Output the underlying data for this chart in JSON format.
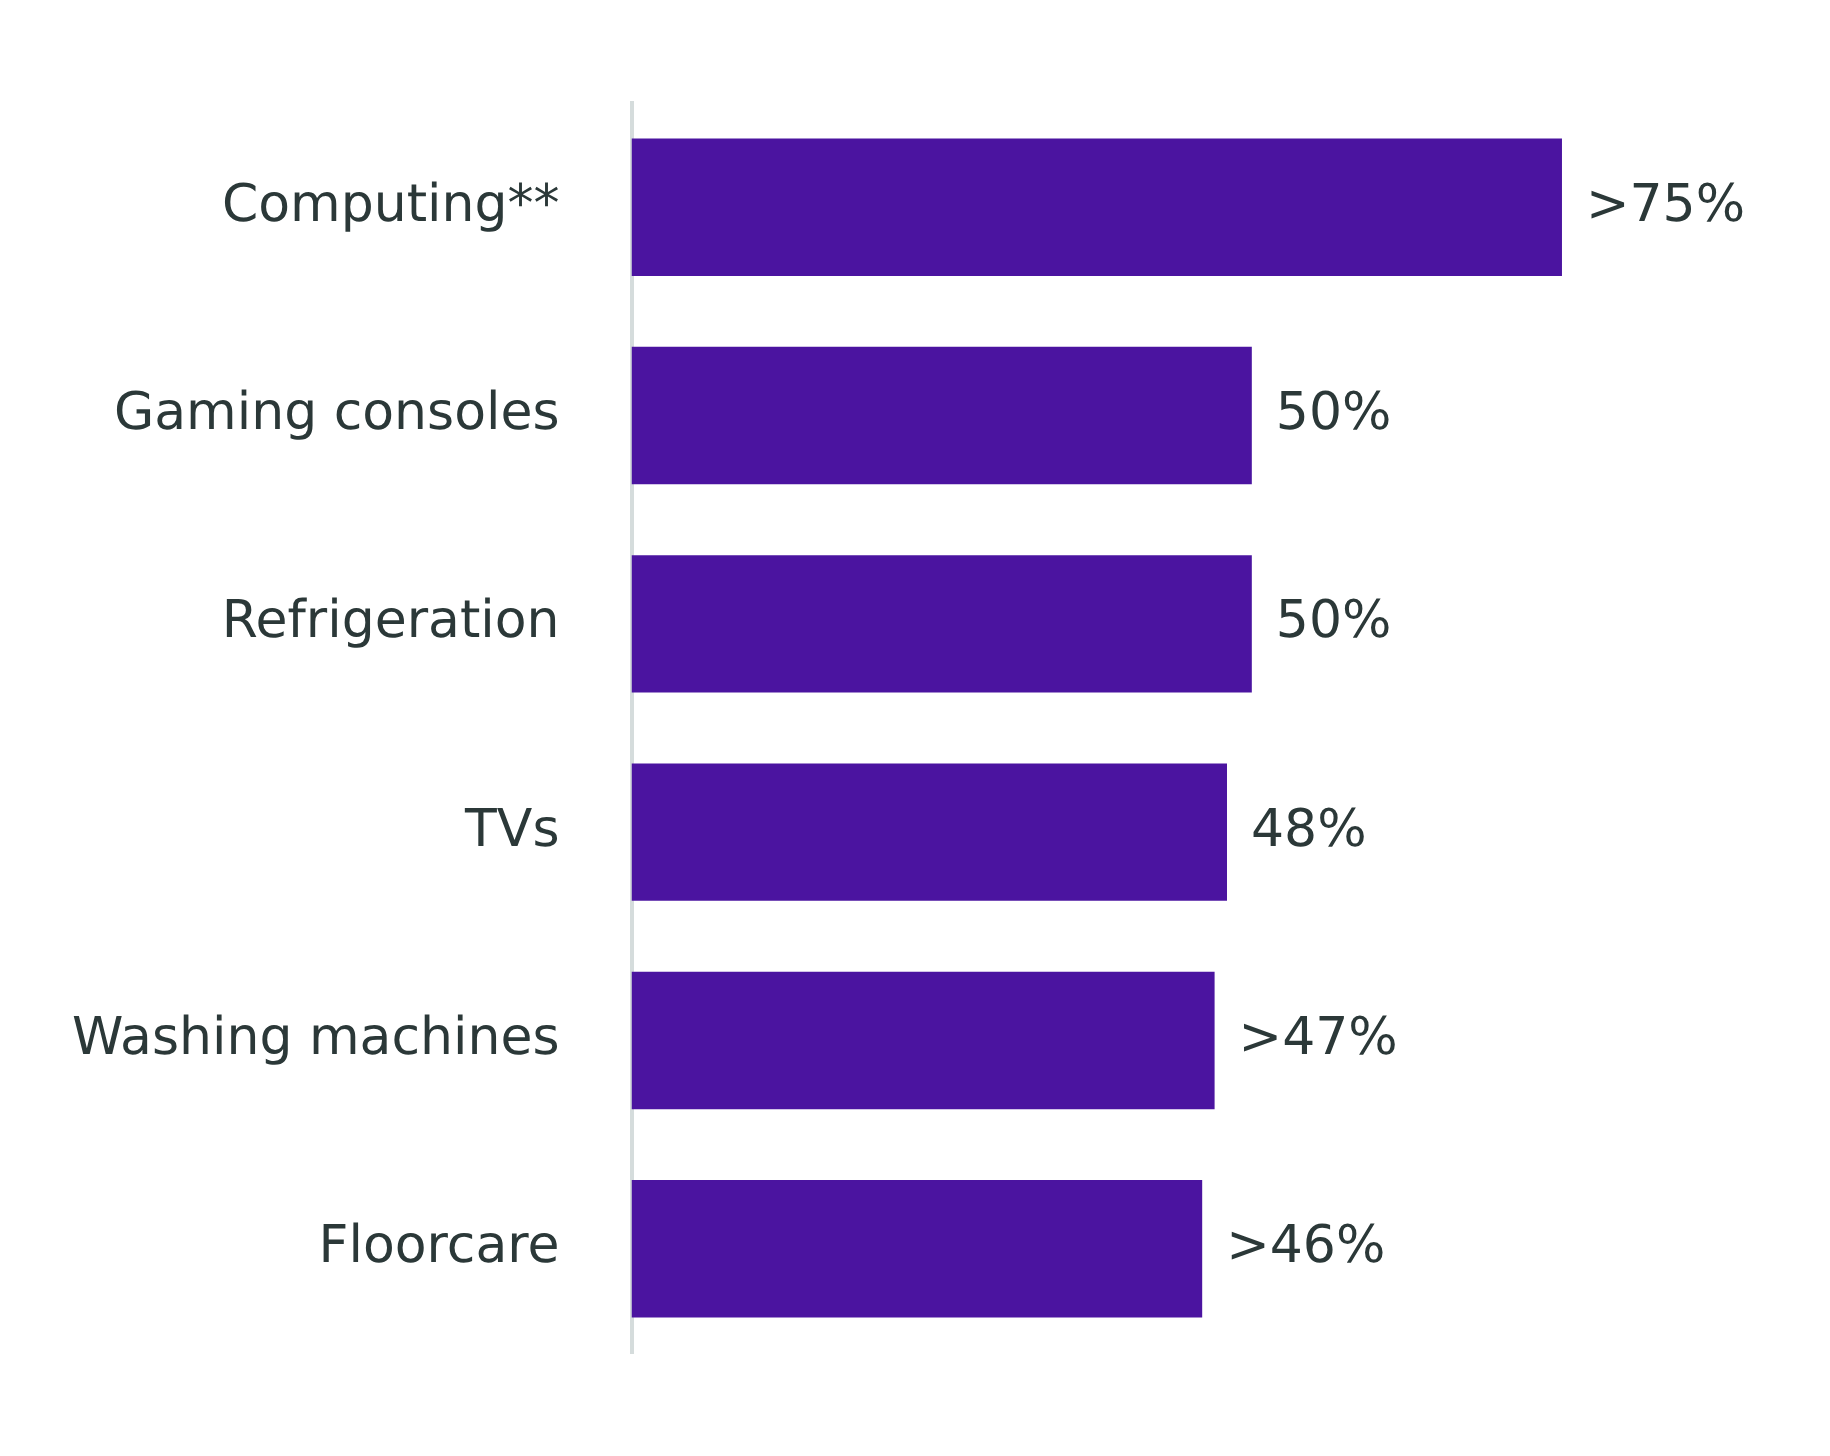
{
  "chart_data": {
    "type": "bar",
    "orientation": "horizontal",
    "categories": [
      "Computing**",
      "Gaming consoles",
      "Refrigeration",
      "TVs",
      "Washing machines",
      "Floorcare"
    ],
    "values": [
      75,
      50,
      50,
      48,
      47,
      46
    ],
    "value_labels": [
      ">75%",
      "50%",
      "50%",
      "48%",
      ">47%",
      ">46%"
    ],
    "color": "#4b14a0",
    "grid": false,
    "legend": false,
    "tick_labels": "y"
  }
}
